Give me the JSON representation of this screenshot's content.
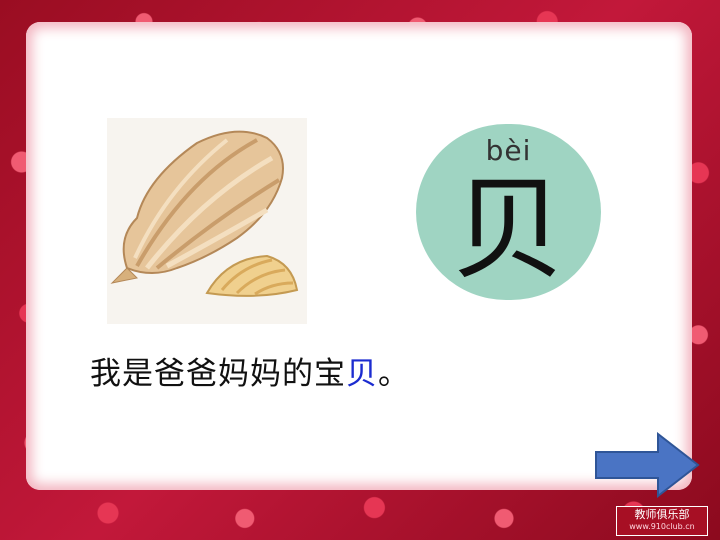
{
  "lesson": {
    "pinyin": "bèi",
    "character": "贝",
    "sentence_before": "我是爸爸妈妈的宝",
    "sentence_highlight": "贝",
    "sentence_after": "。"
  },
  "watermark": {
    "title": "教师俱乐部",
    "url": "www.910club.cn"
  },
  "colors": {
    "frame": "#b1122b",
    "highlight": "#1c2cd0",
    "char_card": "#9fd4c2",
    "arrow": "#4a74c4"
  }
}
